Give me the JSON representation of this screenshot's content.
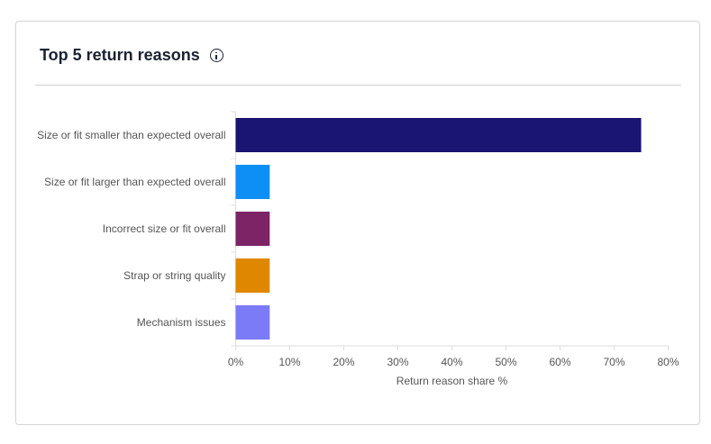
{
  "card": {
    "title": "Top 5 return reasons",
    "info_icon": "info-circle-icon"
  },
  "chart_data": {
    "type": "bar",
    "orientation": "horizontal",
    "categories": [
      "Size or fit smaller than expected overall",
      "Size or fit larger than expected overall",
      "Incorrect size or fit overall",
      "Strap or string quality",
      "Mechanism issues"
    ],
    "values": [
      75,
      6.3,
      6.3,
      6.3,
      6.3
    ],
    "colors": [
      "#1a1472",
      "#0d8ff5",
      "#7c2466",
      "#e08700",
      "#7b7bf7"
    ],
    "xlabel": "Return reason share %",
    "xlim": [
      0,
      80
    ],
    "xticks": [
      "0%",
      "10%",
      "20%",
      "30%",
      "40%",
      "50%",
      "60%",
      "70%",
      "80%"
    ],
    "grid": false
  }
}
